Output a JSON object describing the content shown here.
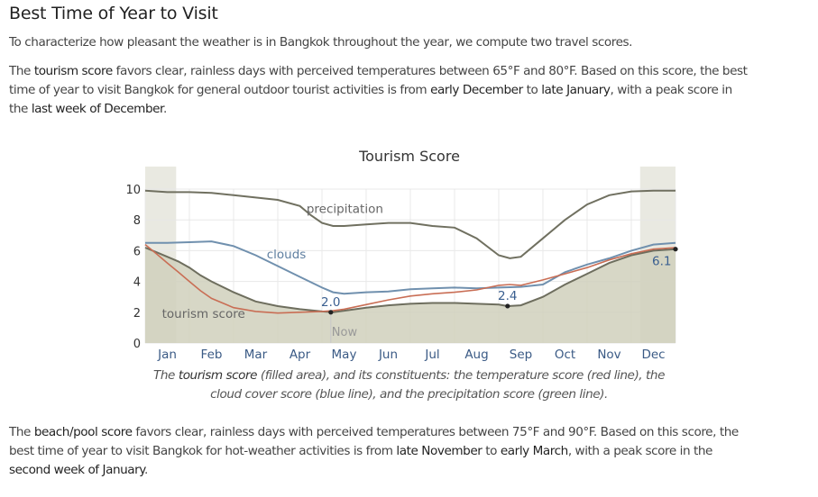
{
  "title": "Best Time of Year to Visit",
  "intro": "To characterize how pleasant the weather is in Bangkok throughout the year, we compute two travel scores.",
  "tourism_paragraph": {
    "lines": [
      [
        {
          "t": "The "
        },
        {
          "t": "tourism score",
          "h": true
        },
        {
          "t": " favors clear, rainless days with perceived temperatures between 65°F and 80°F. Based on this score, the best"
        }
      ],
      [
        {
          "t": "time of year to visit Bangkok for general outdoor tourist activities is from "
        },
        {
          "t": "early December",
          "h": true
        },
        {
          "t": " to "
        },
        {
          "t": "late January",
          "h": true
        },
        {
          "t": ", with a peak score in"
        }
      ],
      [
        {
          "t": "the "
        },
        {
          "t": "last week of December",
          "h": true
        },
        {
          "t": "."
        }
      ]
    ]
  },
  "caption": {
    "lines": [
      [
        {
          "t": "The "
        },
        {
          "t": "tourism score",
          "h": true
        },
        {
          "t": " (filled area), and its constituents: the temperature score (red line), the"
        }
      ],
      [
        {
          "t": "cloud cover score (blue line), and the precipitation score (green line)."
        }
      ]
    ]
  },
  "beach_paragraph": {
    "lines": [
      [
        {
          "t": "The "
        },
        {
          "t": "beach/pool score",
          "h": true
        },
        {
          "t": " favors clear, rainless days with perceived temperatures between 75°F and 90°F. Based on this score, the"
        }
      ],
      [
        {
          "t": "best time of year to visit Bangkok for hot-weather activities is from "
        },
        {
          "t": "late November",
          "h": true
        },
        {
          "t": " to "
        },
        {
          "t": "early March",
          "h": true
        },
        {
          "t": ", with a peak score in the"
        }
      ],
      [
        {
          "t": "second week of January",
          "h": true
        },
        {
          "t": "."
        }
      ]
    ]
  },
  "colors": {
    "area_fill": "#d0d0bc",
    "area_line": "#6e6e5e",
    "temperature": "#c96e55",
    "clouds": "#7090ae",
    "precipitation": "#707060",
    "best_band": "#e9e9e1",
    "grid": "#e8e8e8",
    "now_line": "#c8c8c8"
  },
  "chart_data": {
    "type": "area",
    "title": "Tourism Score",
    "xlabel": "",
    "ylabel": "",
    "ylim": [
      0,
      10
    ],
    "yticks": [
      0,
      2,
      4,
      6,
      8,
      10
    ],
    "x_range": [
      0,
      12
    ],
    "months": [
      "Jan",
      "Feb",
      "Mar",
      "Apr",
      "May",
      "Jun",
      "Jul",
      "Aug",
      "Sep",
      "Oct",
      "Nov",
      "Dec"
    ],
    "best_periods": [
      [
        0,
        0.7
      ],
      [
        11.2,
        12
      ]
    ],
    "now_label": "Now",
    "now_x": 4.2,
    "labels": {
      "precipitation": "precipitation",
      "clouds": "clouds",
      "tourism": "tourism score"
    },
    "tourism_score": {
      "x": [
        0,
        0.25,
        0.5,
        0.75,
        1,
        1.25,
        1.5,
        2,
        2.5,
        3,
        3.5,
        4,
        4.25,
        4.5,
        5,
        5.5,
        6,
        6.5,
        7,
        7.5,
        8,
        8.2,
        8.5,
        9,
        9.5,
        10,
        10.5,
        11,
        11.5,
        12
      ],
      "y": [
        6.2,
        5.9,
        5.6,
        5.3,
        4.9,
        4.4,
        4.0,
        3.3,
        2.7,
        2.4,
        2.2,
        2.05,
        2.0,
        2.1,
        2.3,
        2.45,
        2.55,
        2.6,
        2.6,
        2.55,
        2.5,
        2.4,
        2.45,
        3.0,
        3.8,
        4.5,
        5.2,
        5.7,
        6.0,
        6.1
      ]
    },
    "temperature": {
      "x": [
        0,
        0.25,
        0.5,
        0.75,
        1,
        1.25,
        1.5,
        2,
        2.5,
        3,
        3.5,
        4,
        4.25,
        4.5,
        5,
        5.5,
        6,
        6.5,
        7,
        7.5,
        8,
        8.25,
        8.5,
        9,
        9.5,
        10,
        10.5,
        11,
        11.5,
        12
      ],
      "y": [
        6.4,
        5.8,
        5.2,
        4.6,
        4.0,
        3.4,
        2.9,
        2.3,
        2.05,
        1.95,
        2.0,
        2.05,
        2.1,
        2.2,
        2.5,
        2.8,
        3.05,
        3.2,
        3.3,
        3.45,
        3.75,
        3.8,
        3.75,
        4.1,
        4.5,
        4.9,
        5.4,
        5.8,
        6.1,
        6.2
      ]
    },
    "clouds": {
      "x": [
        0,
        0.5,
        1,
        1.5,
        2,
        2.5,
        3,
        3.5,
        4,
        4.25,
        4.5,
        5,
        5.5,
        6,
        6.5,
        7,
        7.5,
        8,
        8.5,
        9,
        9.5,
        10,
        10.5,
        11,
        11.5,
        12
      ],
      "y": [
        6.5,
        6.5,
        6.55,
        6.6,
        6.3,
        5.7,
        5.0,
        4.3,
        3.6,
        3.3,
        3.2,
        3.3,
        3.35,
        3.5,
        3.55,
        3.6,
        3.55,
        3.6,
        3.65,
        3.8,
        4.6,
        5.1,
        5.5,
        6.0,
        6.4,
        6.5
      ]
    },
    "precipitation": {
      "x": [
        0,
        0.5,
        1,
        1.5,
        2,
        2.5,
        3,
        3.5,
        3.75,
        4,
        4.25,
        4.5,
        5,
        5.5,
        6,
        6.5,
        7,
        7.5,
        8,
        8.25,
        8.5,
        9,
        9.5,
        10,
        10.5,
        11,
        11.5,
        12
      ],
      "y": [
        9.9,
        9.8,
        9.8,
        9.75,
        9.6,
        9.45,
        9.3,
        8.9,
        8.3,
        7.8,
        7.6,
        7.6,
        7.7,
        7.8,
        7.8,
        7.6,
        7.5,
        6.8,
        5.7,
        5.5,
        5.6,
        6.8,
        8.0,
        9.0,
        9.6,
        9.85,
        9.9,
        9.9
      ]
    },
    "annotations": [
      {
        "label": "2.0",
        "x": 4.2,
        "y": 2.0
      },
      {
        "label": "2.4",
        "x": 8.2,
        "y": 2.4
      },
      {
        "label": "6.1",
        "x": 12,
        "y": 6.1
      }
    ]
  }
}
